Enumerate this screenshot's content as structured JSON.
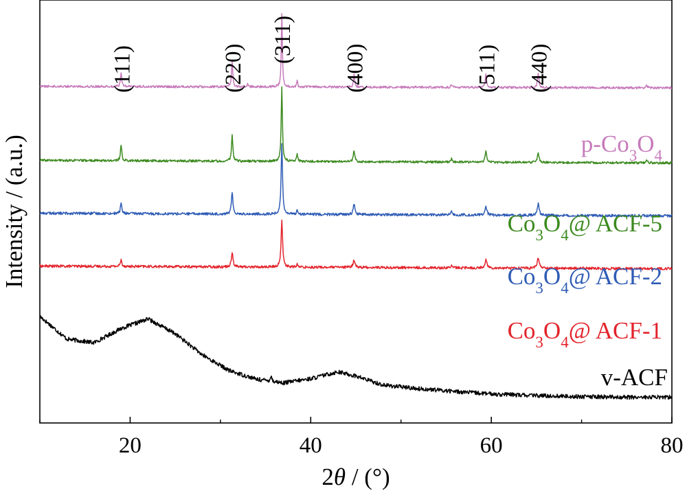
{
  "chart_data": {
    "type": "line",
    "title": "",
    "xlabel_prefix": "2",
    "xlabel_symbol": "θ",
    "xlabel_suffix": " / (°)",
    "ylabel": "Intensity / (a.u.)",
    "xlim": [
      10,
      80
    ],
    "x_ticks": [
      20,
      40,
      60,
      80
    ],
    "x_minor_ticks": [
      10,
      30,
      50,
      70
    ],
    "y_tick_labels_shown": false,
    "grid": false,
    "legend": "inline labels at right",
    "peak_labels": [
      {
        "text": "(111)",
        "x": 19.0
      },
      {
        "text": "(220)",
        "x": 31.3
      },
      {
        "text": "(311)",
        "x": 36.8
      },
      {
        "text": "(400)",
        "x": 44.8
      },
      {
        "text": "(511)",
        "x": 59.4
      },
      {
        "text": "(440)",
        "x": 65.2
      }
    ],
    "series": [
      {
        "name": "v-ACF",
        "label_parts": [
          "v-ACF"
        ],
        "color": "#000000",
        "offset": 0,
        "baseline": [
          [
            10,
            1.55
          ],
          [
            13,
            1.12
          ],
          [
            16,
            1.05
          ],
          [
            19,
            1.32
          ],
          [
            22,
            1.5
          ],
          [
            25,
            1.22
          ],
          [
            28,
            0.82
          ],
          [
            31,
            0.52
          ],
          [
            34,
            0.36
          ],
          [
            37,
            0.29
          ],
          [
            40,
            0.37
          ],
          [
            43,
            0.5
          ],
          [
            45,
            0.42
          ],
          [
            48,
            0.25
          ],
          [
            52,
            0.18
          ],
          [
            56,
            0.13
          ],
          [
            60,
            0.08
          ],
          [
            65,
            0.05
          ],
          [
            70,
            0.03
          ],
          [
            75,
            0.02
          ],
          [
            80,
            0.02
          ]
        ],
        "peaks": [
          [
            35.6,
            0.1,
            0.2
          ]
        ],
        "noise": 0.04
      },
      {
        "name": "Co3O4@ ACF-1",
        "label_parts": [
          "Co",
          "3",
          "O",
          "4",
          "@ ACF-1"
        ],
        "color": "#e3232b",
        "offset": 2.5,
        "baseline": [
          [
            10,
            0
          ],
          [
            80,
            -0.05
          ]
        ],
        "peaks": [
          [
            19.0,
            0.12,
            0.2
          ],
          [
            31.3,
            0.28,
            0.22
          ],
          [
            36.8,
            0.88,
            0.2
          ],
          [
            38.5,
            0.05,
            0.15
          ],
          [
            44.8,
            0.14,
            0.25
          ],
          [
            55.6,
            0.04,
            0.2
          ],
          [
            59.4,
            0.16,
            0.25
          ],
          [
            65.2,
            0.2,
            0.25
          ]
        ],
        "noise": 0.025
      },
      {
        "name": "Co3O4@ ACF-2",
        "label_parts": [
          "Co",
          "3",
          "O",
          "4",
          "@ ACF-2"
        ],
        "color": "#2f5cb5",
        "offset": 3.5,
        "baseline": [
          [
            10,
            0
          ],
          [
            80,
            -0.05
          ]
        ],
        "peaks": [
          [
            19.0,
            0.2,
            0.18
          ],
          [
            31.3,
            0.4,
            0.2
          ],
          [
            36.8,
            1.35,
            0.18
          ],
          [
            38.5,
            0.1,
            0.15
          ],
          [
            44.8,
            0.2,
            0.22
          ],
          [
            55.6,
            0.06,
            0.2
          ],
          [
            59.4,
            0.18,
            0.22
          ],
          [
            65.2,
            0.22,
            0.22
          ]
        ],
        "noise": 0.025
      },
      {
        "name": "Co3O4@ ACF-5",
        "label_parts": [
          "Co",
          "3",
          "O",
          "4",
          "@ ACF-5"
        ],
        "color": "#3c8a1f",
        "offset": 4.5,
        "baseline": [
          [
            10,
            0
          ],
          [
            80,
            -0.05
          ]
        ],
        "peaks": [
          [
            19.0,
            0.3,
            0.17
          ],
          [
            31.3,
            0.48,
            0.18
          ],
          [
            36.8,
            1.4,
            0.16
          ],
          [
            38.5,
            0.15,
            0.14
          ],
          [
            44.8,
            0.2,
            0.2
          ],
          [
            55.6,
            0.06,
            0.2
          ],
          [
            59.4,
            0.2,
            0.2
          ],
          [
            65.2,
            0.18,
            0.2
          ],
          [
            77.2,
            0.04,
            0.2
          ]
        ],
        "noise": 0.022
      },
      {
        "name": "p-Co3O4",
        "label_parts": [
          "p-Co",
          "3",
          "O",
          "4",
          ""
        ],
        "color": "#c77bbb",
        "offset": 5.9,
        "baseline": [
          [
            10,
            0
          ],
          [
            80,
            -0.03
          ]
        ],
        "peaks": [
          [
            19.0,
            0.28,
            0.15
          ],
          [
            31.3,
            0.48,
            0.16
          ],
          [
            33.0,
            0.05,
            0.15
          ],
          [
            36.8,
            1.4,
            0.14
          ],
          [
            38.5,
            0.12,
            0.13
          ],
          [
            44.8,
            0.23,
            0.17
          ],
          [
            55.6,
            0.05,
            0.17
          ],
          [
            59.4,
            0.26,
            0.17
          ],
          [
            65.2,
            0.28,
            0.17
          ],
          [
            77.2,
            0.05,
            0.2
          ]
        ],
        "noise": 0.022
      }
    ]
  }
}
